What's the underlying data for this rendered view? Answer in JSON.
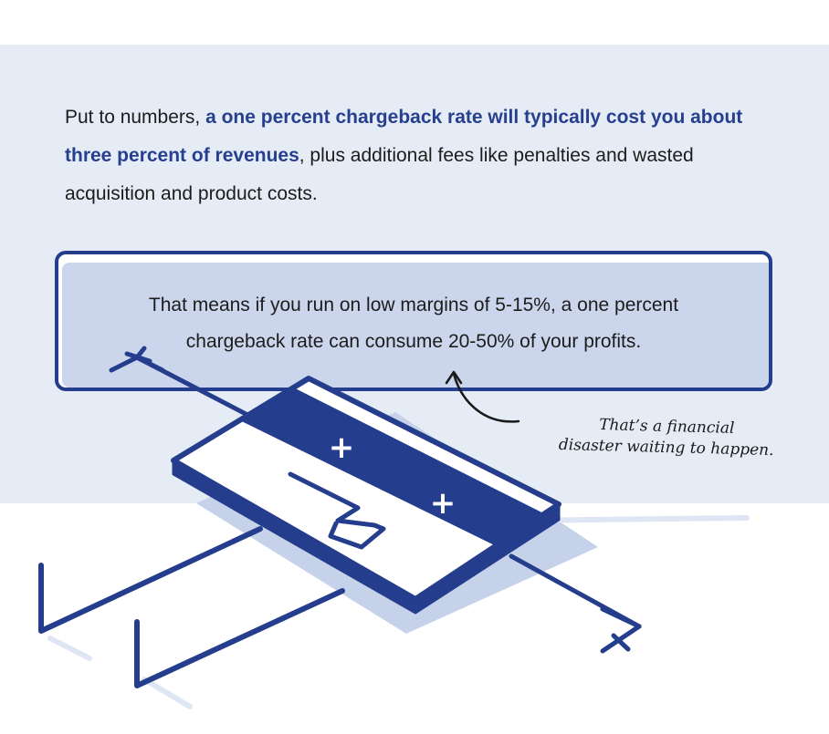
{
  "intro": {
    "lead": "Put to numbers, ",
    "highlight": "a one percent chargeback rate will typically cost you about three percent of revenues",
    "tail": ", plus additional fees like penalties and wasted acquisition and product costs."
  },
  "callout": {
    "line1": "That means if you run on low margins of 5-15%, a one percent",
    "line2": "chargeback rate can consume 20-50% of your profits."
  },
  "note": {
    "line1": "That’s a financial",
    "line2": "disaster waiting to happen."
  },
  "colors": {
    "accent": "#243d8c",
    "band": "#e6ecf6",
    "callout_fill": "#cbd6ec",
    "shadow": "#c6d2ea"
  },
  "illustration": {
    "card_icon": "credit-card-icon",
    "arrow_icon": "arrow-icon",
    "card_symbols": [
      "+",
      "+"
    ]
  }
}
